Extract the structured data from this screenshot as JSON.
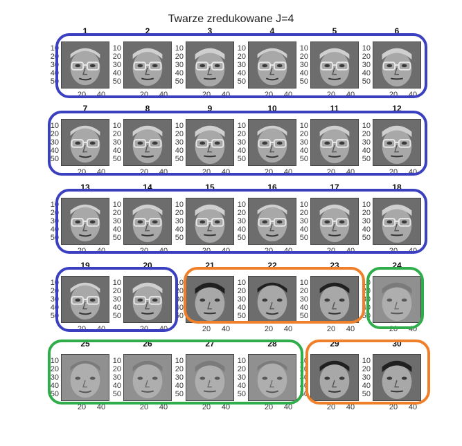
{
  "figure": {
    "title": "Twarze zredukowane J=4"
  },
  "chart_data": {
    "type": "image-grid",
    "title": "Twarze zredukowane J=4",
    "rows": 5,
    "cols": 6,
    "panels": [
      {
        "label": "1",
        "variant": "glasses",
        "cluster": "blue"
      },
      {
        "label": "2",
        "variant": "glasses",
        "cluster": "blue"
      },
      {
        "label": "3",
        "variant": "glasses",
        "cluster": "blue"
      },
      {
        "label": "4",
        "variant": "glasses",
        "cluster": "blue"
      },
      {
        "label": "5",
        "variant": "glasses",
        "cluster": "blue"
      },
      {
        "label": "6",
        "variant": "glasses",
        "cluster": "blue"
      },
      {
        "label": "7",
        "variant": "glasses",
        "cluster": "blue"
      },
      {
        "label": "8",
        "variant": "glasses",
        "cluster": "blue"
      },
      {
        "label": "9",
        "variant": "glasses",
        "cluster": "blue"
      },
      {
        "label": "10",
        "variant": "glasses",
        "cluster": "blue"
      },
      {
        "label": "11",
        "variant": "glasses",
        "cluster": "blue"
      },
      {
        "label": "12",
        "variant": "glasses",
        "cluster": "blue"
      },
      {
        "label": "13",
        "variant": "glasses",
        "cluster": "blue"
      },
      {
        "label": "14",
        "variant": "glasses",
        "cluster": "blue"
      },
      {
        "label": "15",
        "variant": "glasses",
        "cluster": "blue"
      },
      {
        "label": "16",
        "variant": "glasses",
        "cluster": "blue"
      },
      {
        "label": "17",
        "variant": "glasses",
        "cluster": "blue"
      },
      {
        "label": "18",
        "variant": "glasses",
        "cluster": "blue"
      },
      {
        "label": "19",
        "variant": "glasses",
        "cluster": "blue"
      },
      {
        "label": "20",
        "variant": "glasses",
        "cluster": "blue"
      },
      {
        "label": "21",
        "variant": "dark-hair",
        "cluster": "orange"
      },
      {
        "label": "22",
        "variant": "dark-hair",
        "cluster": "orange"
      },
      {
        "label": "23",
        "variant": "dark-hair",
        "cluster": "orange"
      },
      {
        "label": "24",
        "variant": "blurred",
        "cluster": "green"
      },
      {
        "label": "25",
        "variant": "blurred",
        "cluster": "green"
      },
      {
        "label": "26",
        "variant": "blurred",
        "cluster": "green"
      },
      {
        "label": "27",
        "variant": "blurred",
        "cluster": "green"
      },
      {
        "label": "28",
        "variant": "blurred",
        "cluster": "green"
      },
      {
        "label": "29",
        "variant": "dark-hair",
        "cluster": "orange"
      },
      {
        "label": "30",
        "variant": "dark-hair",
        "cluster": "orange"
      }
    ],
    "yticks": [
      "10",
      "20",
      "30",
      "40",
      "50"
    ],
    "xticks": [
      "20",
      "40"
    ],
    "ylim": [
      1,
      56
    ],
    "xlim": [
      1,
      46
    ],
    "clusters": [
      {
        "name": "blue",
        "color": "#3b40c0"
      },
      {
        "name": "orange",
        "color": "#f07f2a"
      },
      {
        "name": "green",
        "color": "#2fad4b"
      }
    ],
    "grid": false
  }
}
